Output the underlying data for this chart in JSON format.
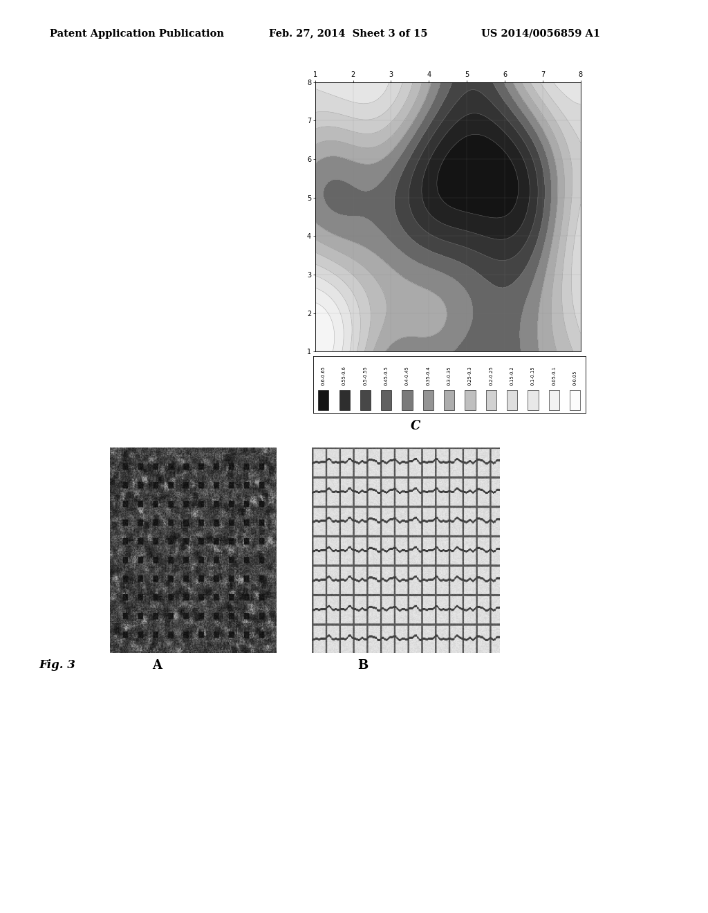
{
  "header_left": "Patent Application Publication",
  "header_mid": "Feb. 27, 2014  Sheet 3 of 15",
  "header_right": "US 2014/0056859 A1",
  "fig_label": "Fig. 3",
  "panel_a_label": "A",
  "panel_b_label": "B",
  "panel_c_label": "C",
  "background_color": "#ffffff",
  "header_fontsize": 10.5,
  "legend_entries": [
    "0.6-0.65",
    "0.55-0.6",
    "0.5-0.55",
    "0.45-0.5",
    "0.4-0.45",
    "0.35-0.4",
    "0.3-0.35",
    "0.25-0.3",
    "0.2-0.25",
    "0.15-0.2",
    "0.1-0.15",
    "0.05-0.1",
    "0-0.05"
  ],
  "legend_gray_values": [
    0.08,
    0.18,
    0.28,
    0.38,
    0.48,
    0.58,
    0.68,
    0.75,
    0.82,
    0.87,
    0.91,
    0.95,
    0.99
  ]
}
